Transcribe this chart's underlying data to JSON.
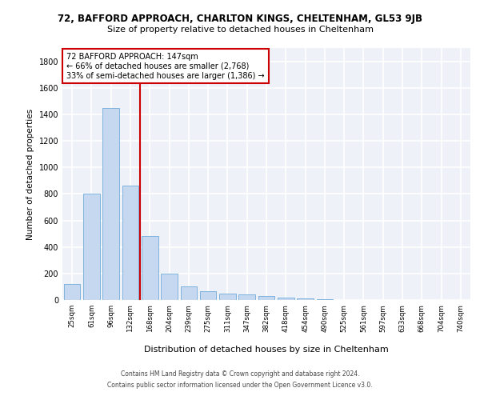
{
  "title_line1": "72, BAFFORD APPROACH, CHARLTON KINGS, CHELTENHAM, GL53 9JB",
  "title_line2": "Size of property relative to detached houses in Cheltenham",
  "xlabel": "Distribution of detached houses by size in Cheltenham",
  "ylabel": "Number of detached properties",
  "categories": [
    "25sqm",
    "61sqm",
    "96sqm",
    "132sqm",
    "168sqm",
    "204sqm",
    "239sqm",
    "275sqm",
    "311sqm",
    "347sqm",
    "382sqm",
    "418sqm",
    "454sqm",
    "490sqm",
    "525sqm",
    "561sqm",
    "597sqm",
    "633sqm",
    "668sqm",
    "704sqm",
    "740sqm"
  ],
  "values": [
    120,
    800,
    1450,
    860,
    480,
    200,
    100,
    65,
    50,
    40,
    30,
    20,
    10,
    5,
    3,
    2,
    1,
    1,
    1,
    1,
    1
  ],
  "bar_color": "#c5d8f0",
  "bar_edge_color": "#5a9fd4",
  "red_line_x": 3.5,
  "annotation_text": "72 BAFFORD APPROACH: 147sqm\n← 66% of detached houses are smaller (2,768)\n33% of semi-detached houses are larger (1,386) →",
  "annotation_box_color": "#ffffff",
  "annotation_box_edge": "#cc0000",
  "ylim": [
    0,
    1900
  ],
  "yticks": [
    0,
    200,
    400,
    600,
    800,
    1000,
    1200,
    1400,
    1600,
    1800
  ],
  "background_color": "#eef2f8",
  "grid_color": "#ffffff",
  "footer_line1": "Contains HM Land Registry data © Crown copyright and database right 2024.",
  "footer_line2": "Contains public sector information licensed under the Open Government Licence v3.0."
}
